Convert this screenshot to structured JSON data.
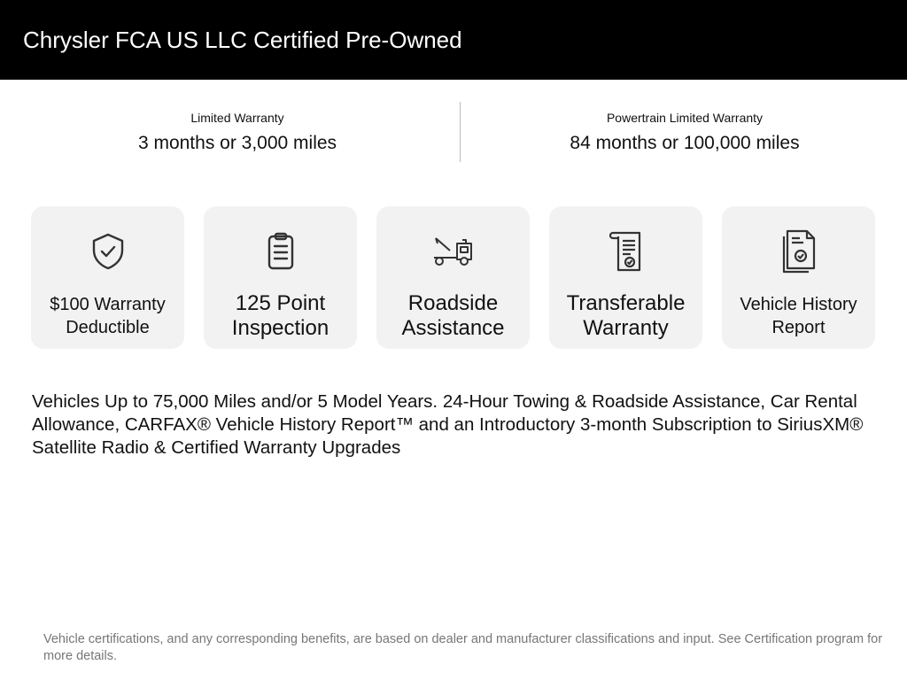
{
  "header": {
    "title": "Chrysler FCA US LLC Certified Pre-Owned"
  },
  "warranties": [
    {
      "label": "Limited Warranty",
      "value": "3 months or 3,000 miles"
    },
    {
      "label": "Powertrain Limited Warranty",
      "value": "84 months or 100,000 miles"
    }
  ],
  "cards": [
    {
      "icon": "shield-check-icon",
      "label": "$100 Warranty Deductible"
    },
    {
      "icon": "clipboard-icon",
      "label": "125 Point Inspection"
    },
    {
      "icon": "tow-truck-icon",
      "label": "Roadside Assistance"
    },
    {
      "icon": "certificate-scroll-icon",
      "label": "Transferable Warranty"
    },
    {
      "icon": "documents-check-icon",
      "label": "Vehicle History Report"
    }
  ],
  "description": "Vehicles Up to 75,000 Miles and/or 5 Model Years. 24-Hour Towing & Roadside Assistance, Car Rental Allowance, CARFAX® Vehicle History Report™ and an Introductory 3-month Subscription to SiriusXM® Satellite Radio & Certified Warranty Upgrades",
  "footer": "Vehicle certifications, and any corresponding benefits, are based on dealer and manufacturer classifications and input. See Certification program for more details."
}
